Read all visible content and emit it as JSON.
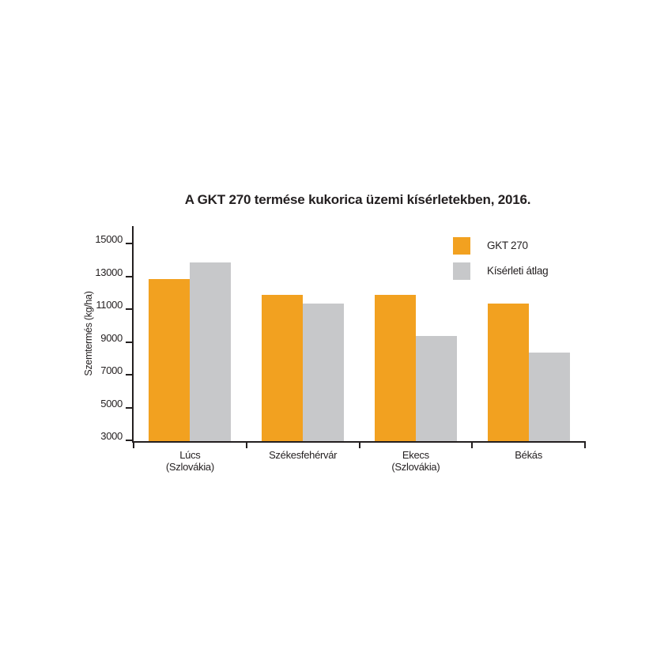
{
  "chart_data": {
    "type": "bar",
    "title": "A GKT 270 termése kukorica üzemi kísérletekben, 2016.",
    "ylabel": "Szemtermés (kg/ha)",
    "xlabel": "",
    "categories": [
      "Lúcs (Szlovákia)",
      "Székesfehérvár",
      "Ekecs (Szlovákia)",
      "Békás"
    ],
    "category_lines": [
      [
        "Lúcs",
        "(Szlovákia)"
      ],
      [
        "Székesfehérvár"
      ],
      [
        "Ekecs",
        "(Szlovákia)"
      ],
      [
        "Békás"
      ]
    ],
    "series": [
      {
        "name": "GKT 270",
        "color": "#F2A120",
        "values": [
          12900,
          11900,
          11900,
          11400
        ]
      },
      {
        "name": "Kísérleti átlag",
        "color": "#C7C8CA",
        "values": [
          13900,
          11400,
          9400,
          8400
        ]
      }
    ],
    "ylim": [
      3000,
      15000
    ],
    "yticks": [
      3000,
      5000,
      7000,
      9000,
      11000,
      13000,
      15000
    ],
    "grid": false,
    "legend_position": "top-right"
  },
  "colors": {
    "background": "#FFFFFF",
    "axis": "#231F20",
    "text": "#231F20",
    "series_gkt270": "#F2A120",
    "series_kiserleti_atlag": "#C7C8CA"
  }
}
